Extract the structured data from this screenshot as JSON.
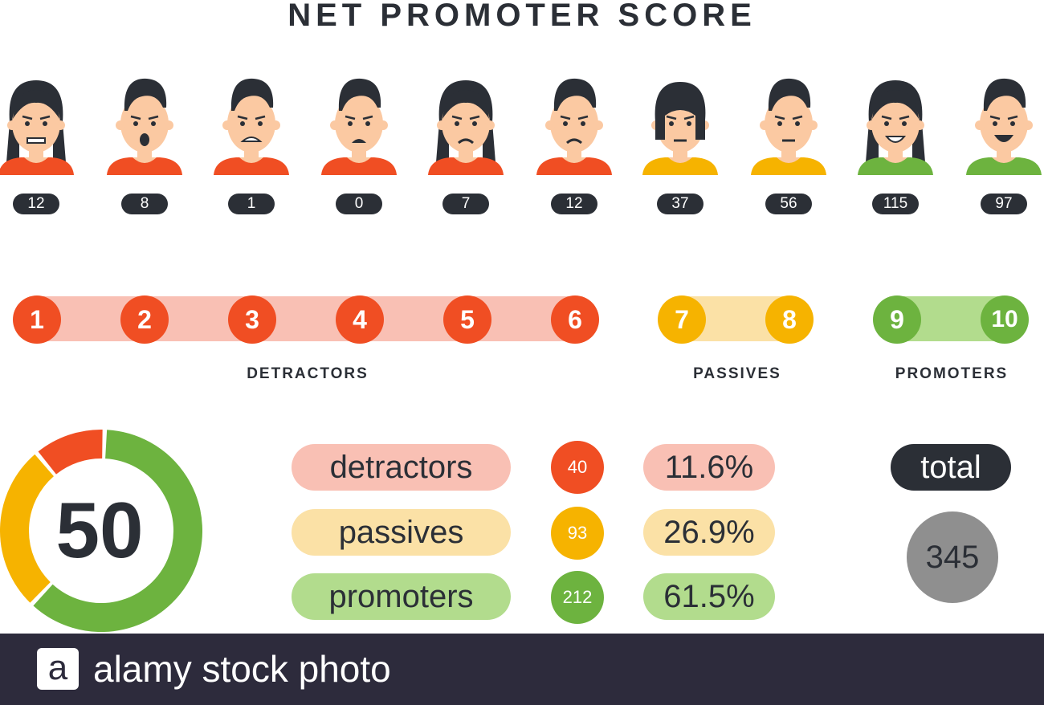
{
  "title": "NET PROMOTER SCORE",
  "faces": [
    {
      "count": "12",
      "shirt": "#f04e23",
      "hair": "long",
      "mood": "angry-girl"
    },
    {
      "count": "8",
      "shirt": "#f04e23",
      "hair": "short",
      "mood": "shocked"
    },
    {
      "count": "1",
      "shirt": "#f04e23",
      "hair": "short",
      "mood": "scared"
    },
    {
      "count": "0",
      "shirt": "#f04e23",
      "hair": "short",
      "mood": "annoyed"
    },
    {
      "count": "7",
      "shirt": "#f04e23",
      "hair": "long",
      "mood": "unhappy-girl"
    },
    {
      "count": "12",
      "shirt": "#f04e23",
      "hair": "short",
      "mood": "sad"
    },
    {
      "count": "37",
      "shirt": "#f6b300",
      "hair": "bob",
      "mood": "neutral-girl"
    },
    {
      "count": "56",
      "shirt": "#f6b300",
      "hair": "short",
      "mood": "neutral"
    },
    {
      "count": "115",
      "shirt": "#6db33f",
      "hair": "long",
      "mood": "happy-girl"
    },
    {
      "count": "97",
      "shirt": "#6db33f",
      "hair": "short",
      "mood": "laughing"
    }
  ],
  "scale": {
    "detractors": [
      "1",
      "2",
      "3",
      "4",
      "5",
      "6"
    ],
    "passives": [
      "7",
      "8"
    ],
    "promoters": [
      "9",
      "10"
    ]
  },
  "group_labels": {
    "detractors": "DETRACTORS",
    "passives": "PASSIVES",
    "promoters": "PROMOTERS"
  },
  "gauge": {
    "value": "50",
    "segments": [
      {
        "name": "promoters",
        "fraction": 0.615,
        "color": "#6db33f"
      },
      {
        "name": "passives",
        "fraction": 0.269,
        "color": "#f6b300"
      },
      {
        "name": "detractors",
        "fraction": 0.116,
        "color": "#f04e23"
      }
    ]
  },
  "summary": [
    {
      "label": "detractors",
      "count": "40",
      "percent": "11.6%",
      "color": "#f04e23"
    },
    {
      "label": "passives",
      "count": "93",
      "percent": "26.9%",
      "color": "#f6b300"
    },
    {
      "label": "promoters",
      "count": "212",
      "percent": "61.5%",
      "color": "#6db33f"
    }
  ],
  "total": {
    "label": "total",
    "value": "345"
  },
  "footer": {
    "logo": "a",
    "text": "alamy stock photo"
  },
  "colors": {
    "dark": "#2b2f36",
    "red": "#f04e23",
    "yellow": "#f6b300",
    "green": "#6db33f",
    "skin": "#fbc9a2",
    "footer_bg": "#2d2b3c"
  }
}
